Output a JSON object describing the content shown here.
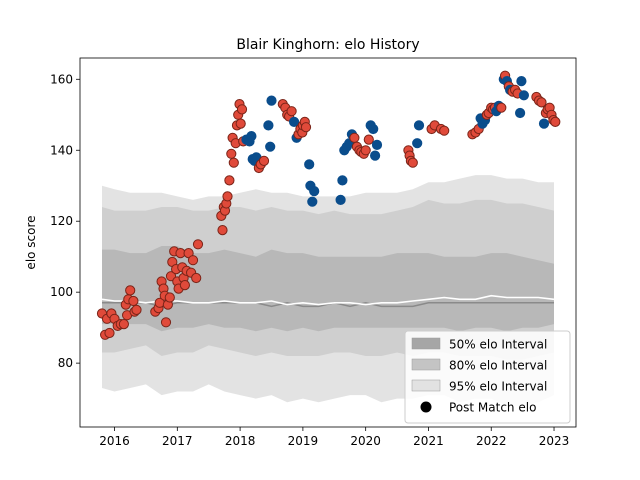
{
  "chart_data": {
    "type": "scatter",
    "title": "Blair Kinghorn: elo History",
    "xlabel": "",
    "ylabel": "elo score",
    "xlim": [
      2015.45,
      2023.35
    ],
    "ylim": [
      62,
      166
    ],
    "x_ticks": [
      2016,
      2017,
      2018,
      2019,
      2020,
      2021,
      2022,
      2023
    ],
    "x_tick_labels": [
      "2016",
      "2017",
      "2018",
      "2019",
      "2020",
      "2021",
      "2022",
      "2023"
    ],
    "y_ticks": [
      80,
      100,
      120,
      140,
      160
    ],
    "y_tick_labels": [
      "80",
      "100",
      "120",
      "140",
      "160"
    ],
    "grid": false,
    "legend_position": "lower-right",
    "legend": [
      {
        "label": "50% elo Interval",
        "kind": "band",
        "color": "#a6a6a6"
      },
      {
        "label": "80% elo Interval",
        "kind": "band",
        "color": "#c4c4c4"
      },
      {
        "label": "95% elo Interval",
        "kind": "band",
        "color": "#e2e2e2"
      },
      {
        "label": "Post Match elo",
        "kind": "marker",
        "color": "#000000"
      }
    ],
    "colors": {
      "band95": "#e3e3e3",
      "band80": "#cfcfcf",
      "band50": "#b8b8b8",
      "median": "#ffffff",
      "mean": "#8a8a8a",
      "win_marker": "#e04a3a",
      "win_edge": "#7a2418",
      "loss_marker": "#0a4d8c"
    },
    "intervals": {
      "x": [
        2015.8,
        2016.0,
        2016.25,
        2016.5,
        2016.75,
        2017.0,
        2017.25,
        2017.5,
        2017.75,
        2018.0,
        2018.25,
        2018.5,
        2018.75,
        2019.0,
        2019.25,
        2019.5,
        2019.75,
        2020.0,
        2020.25,
        2020.5,
        2020.75,
        2021.0,
        2021.25,
        2021.5,
        2021.75,
        2022.0,
        2022.25,
        2022.5,
        2022.75,
        2023.0
      ],
      "p025": [
        73,
        72,
        73,
        74,
        71,
        72,
        72,
        74,
        72,
        71,
        70,
        71,
        69,
        70,
        69,
        70,
        71,
        71,
        69,
        70,
        70,
        71,
        71,
        69,
        70,
        70,
        68,
        68,
        69,
        71
      ],
      "p10": [
        83,
        83,
        84,
        85,
        82,
        83,
        83,
        85,
        84,
        83,
        82,
        83,
        82,
        82,
        82,
        83,
        83,
        82,
        82,
        83,
        82,
        83,
        83,
        82,
        82,
        82,
        81,
        81,
        82,
        83
      ],
      "p25": [
        91,
        91,
        91,
        91,
        89,
        90,
        90,
        91,
        90,
        90,
        89,
        90,
        89,
        90,
        89,
        90,
        90,
        90,
        90,
        90,
        90,
        90,
        90,
        89,
        90,
        90,
        89,
        90,
        90,
        91
      ],
      "mean": [
        97,
        97,
        97,
        97,
        96,
        97,
        97,
        97,
        97,
        97,
        97,
        96,
        97,
        96,
        96,
        97,
        96,
        97,
        96,
        96,
        96,
        97,
        97,
        97,
        97,
        97,
        97,
        97,
        97,
        97
      ],
      "median": [
        98,
        97.5,
        97.5,
        97,
        97.5,
        97.5,
        97,
        97,
        97.5,
        97,
        97,
        97.5,
        96.5,
        97,
        96.5,
        97,
        97,
        96.5,
        97,
        97,
        97.5,
        98,
        98.5,
        98,
        98,
        99,
        98.5,
        98.5,
        98.5,
        98
      ],
      "p75": [
        112,
        112,
        111,
        111,
        113,
        113,
        111,
        111,
        112,
        111,
        110,
        112,
        111,
        111,
        110,
        110,
        110,
        110,
        110,
        111,
        111,
        111,
        110,
        110,
        110,
        111,
        111,
        110,
        109,
        108
      ],
      "p90": [
        124,
        123,
        123,
        123,
        124,
        124,
        123,
        123,
        124,
        124,
        123,
        124,
        123,
        123,
        122,
        123,
        122,
        122,
        122,
        123,
        124,
        126,
        125,
        125,
        126,
        126,
        125,
        125,
        124,
        123
      ],
      "p975": [
        130,
        129,
        128,
        128,
        128,
        127,
        126,
        127,
        127,
        128,
        129,
        128,
        128,
        127,
        127,
        127,
        127,
        128,
        128,
        128,
        129,
        131,
        131,
        132,
        133,
        133,
        132,
        132,
        131,
        131
      ]
    },
    "series": [
      {
        "name": "Post Match elo",
        "points": [
          [
            2015.8,
            94,
            "W"
          ],
          [
            2015.85,
            88,
            "W"
          ],
          [
            2015.88,
            92.5,
            "W"
          ],
          [
            2015.92,
            88.5,
            "W"
          ],
          [
            2015.95,
            94,
            "W"
          ],
          [
            2016.0,
            92.5,
            "W"
          ],
          [
            2016.05,
            90.5,
            "W"
          ],
          [
            2016.1,
            91,
            "W"
          ],
          [
            2016.15,
            91,
            "W"
          ],
          [
            2016.18,
            96.5,
            "W"
          ],
          [
            2016.2,
            93.5,
            "W"
          ],
          [
            2016.22,
            98,
            "W"
          ],
          [
            2016.25,
            100.5,
            "W"
          ],
          [
            2016.3,
            97.5,
            "W"
          ],
          [
            2016.32,
            94.5,
            "W"
          ],
          [
            2016.35,
            95,
            "W"
          ],
          [
            2016.65,
            94.5,
            "W"
          ],
          [
            2016.7,
            95.5,
            "W"
          ],
          [
            2016.72,
            97,
            "W"
          ],
          [
            2016.75,
            103,
            "W"
          ],
          [
            2016.78,
            101,
            "W"
          ],
          [
            2016.8,
            99,
            "W"
          ],
          [
            2016.82,
            91.5,
            "W"
          ],
          [
            2016.85,
            96.5,
            "W"
          ],
          [
            2016.88,
            98.5,
            "W"
          ],
          [
            2016.9,
            104.5,
            "W"
          ],
          [
            2016.92,
            108.5,
            "W"
          ],
          [
            2016.95,
            111.5,
            "W"
          ],
          [
            2016.98,
            106.5,
            "W"
          ],
          [
            2017.0,
            103,
            "W"
          ],
          [
            2017.02,
            101,
            "W"
          ],
          [
            2017.05,
            111,
            "W"
          ],
          [
            2017.08,
            107,
            "W"
          ],
          [
            2017.1,
            104,
            "W"
          ],
          [
            2017.12,
            102,
            "W"
          ],
          [
            2017.15,
            106,
            "W"
          ],
          [
            2017.18,
            111,
            "W"
          ],
          [
            2017.22,
            105.5,
            "W"
          ],
          [
            2017.25,
            109,
            "W"
          ],
          [
            2017.3,
            104,
            "W"
          ],
          [
            2017.33,
            113.5,
            "W"
          ],
          [
            2017.7,
            121.5,
            "W"
          ],
          [
            2017.72,
            117.5,
            "W"
          ],
          [
            2017.74,
            124,
            "W"
          ],
          [
            2017.76,
            123,
            "W"
          ],
          [
            2017.78,
            125,
            "W"
          ],
          [
            2017.8,
            127,
            "W"
          ],
          [
            2017.83,
            131.5,
            "W"
          ],
          [
            2017.86,
            139,
            "W"
          ],
          [
            2017.88,
            143.5,
            "W"
          ],
          [
            2017.9,
            136.5,
            "W"
          ],
          [
            2017.93,
            142,
            "W"
          ],
          [
            2017.95,
            147,
            "W"
          ],
          [
            2017.97,
            150,
            "W"
          ],
          [
            2017.99,
            153,
            "W"
          ],
          [
            2018.01,
            147.5,
            "W"
          ],
          [
            2018.03,
            151.5,
            "W"
          ],
          [
            2018.05,
            142.5,
            "W"
          ],
          [
            2018.1,
            143,
            "L"
          ],
          [
            2018.15,
            142.5,
            "L"
          ],
          [
            2018.18,
            144,
            "L"
          ],
          [
            2018.2,
            137.5,
            "L"
          ],
          [
            2018.23,
            137,
            "L"
          ],
          [
            2018.26,
            138,
            "L"
          ],
          [
            2018.3,
            135,
            "W"
          ],
          [
            2018.33,
            136,
            "W"
          ],
          [
            2018.38,
            137,
            "W"
          ],
          [
            2018.45,
            147,
            "L"
          ],
          [
            2018.48,
            141,
            "L"
          ],
          [
            2018.5,
            154,
            "L"
          ],
          [
            2018.68,
            153,
            "W"
          ],
          [
            2018.72,
            152,
            "W"
          ],
          [
            2018.75,
            150,
            "W"
          ],
          [
            2018.78,
            149.5,
            "W"
          ],
          [
            2018.82,
            151,
            "W"
          ],
          [
            2018.86,
            148,
            "L"
          ],
          [
            2018.9,
            143.5,
            "L"
          ],
          [
            2018.93,
            144.5,
            "W"
          ],
          [
            2018.96,
            146,
            "W"
          ],
          [
            2018.99,
            145,
            "W"
          ],
          [
            2019.0,
            147,
            "W"
          ],
          [
            2019.03,
            148,
            "W"
          ],
          [
            2019.05,
            146.5,
            "W"
          ],
          [
            2019.1,
            136,
            "L"
          ],
          [
            2019.12,
            130,
            "L"
          ],
          [
            2019.15,
            125.5,
            "L"
          ],
          [
            2019.18,
            128.5,
            "L"
          ],
          [
            2019.6,
            126,
            "L"
          ],
          [
            2019.63,
            131.5,
            "L"
          ],
          [
            2019.66,
            140,
            "L"
          ],
          [
            2019.7,
            141,
            "L"
          ],
          [
            2019.74,
            142,
            "L"
          ],
          [
            2019.78,
            144.5,
            "L"
          ],
          [
            2019.82,
            143.5,
            "W"
          ],
          [
            2019.86,
            141,
            "W"
          ],
          [
            2019.9,
            140,
            "W"
          ],
          [
            2019.93,
            139.5,
            "W"
          ],
          [
            2019.97,
            139,
            "W"
          ],
          [
            2020.0,
            140,
            "W"
          ],
          [
            2020.05,
            143,
            "W"
          ],
          [
            2020.08,
            147,
            "L"
          ],
          [
            2020.12,
            146,
            "L"
          ],
          [
            2020.15,
            138.5,
            "L"
          ],
          [
            2020.18,
            141.5,
            "L"
          ],
          [
            2020.68,
            140,
            "W"
          ],
          [
            2020.7,
            138.5,
            "W"
          ],
          [
            2020.72,
            137,
            "W"
          ],
          [
            2020.75,
            136.5,
            "W"
          ],
          [
            2020.82,
            142,
            "L"
          ],
          [
            2020.85,
            147,
            "L"
          ],
          [
            2021.05,
            146,
            "W"
          ],
          [
            2021.1,
            147,
            "W"
          ],
          [
            2021.2,
            146,
            "W"
          ],
          [
            2021.25,
            145.5,
            "W"
          ],
          [
            2021.7,
            144.5,
            "W"
          ],
          [
            2021.75,
            145,
            "W"
          ],
          [
            2021.8,
            146,
            "W"
          ],
          [
            2021.83,
            149,
            "L"
          ],
          [
            2021.86,
            147.5,
            "L"
          ],
          [
            2021.9,
            148.5,
            "L"
          ],
          [
            2021.93,
            150,
            "W"
          ],
          [
            2021.96,
            150.5,
            "W"
          ],
          [
            2022.0,
            152,
            "W"
          ],
          [
            2022.03,
            151.5,
            "W"
          ],
          [
            2022.06,
            152,
            "W"
          ],
          [
            2022.08,
            151,
            "L"
          ],
          [
            2022.12,
            152.5,
            "L"
          ],
          [
            2022.16,
            152,
            "W"
          ],
          [
            2022.2,
            160,
            "L"
          ],
          [
            2022.22,
            161,
            "W"
          ],
          [
            2022.25,
            159.5,
            "L"
          ],
          [
            2022.28,
            158,
            "W"
          ],
          [
            2022.3,
            157,
            "L"
          ],
          [
            2022.34,
            156.5,
            "W"
          ],
          [
            2022.38,
            157,
            "W"
          ],
          [
            2022.42,
            156,
            "W"
          ],
          [
            2022.46,
            150.5,
            "L"
          ],
          [
            2022.48,
            159.5,
            "L"
          ],
          [
            2022.52,
            155.5,
            "L"
          ],
          [
            2022.72,
            155,
            "W"
          ],
          [
            2022.76,
            154,
            "W"
          ],
          [
            2022.8,
            153.5,
            "W"
          ],
          [
            2022.84,
            147.5,
            "L"
          ],
          [
            2022.87,
            150.5,
            "W"
          ],
          [
            2022.9,
            151.5,
            "W"
          ],
          [
            2022.93,
            152,
            "W"
          ],
          [
            2022.96,
            150,
            "W"
          ],
          [
            2022.99,
            148.5,
            "W"
          ],
          [
            2023.02,
            148,
            "W"
          ]
        ]
      }
    ]
  }
}
